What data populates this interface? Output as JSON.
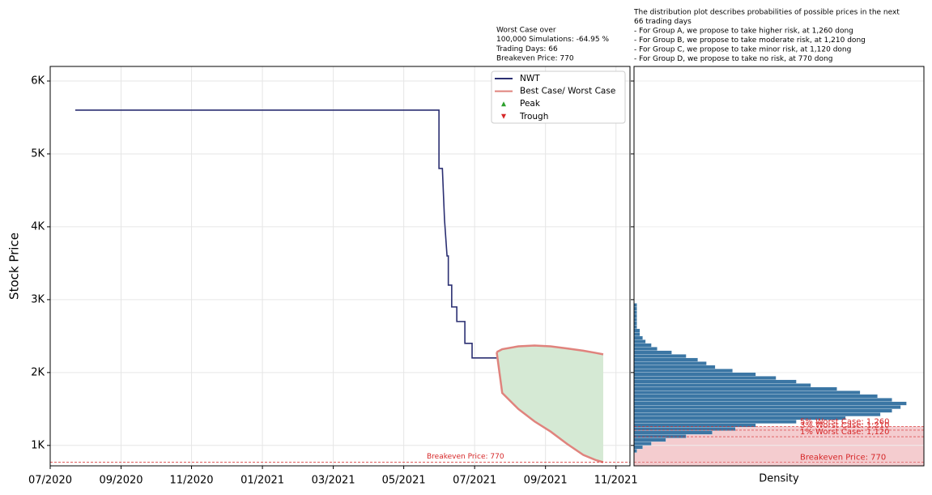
{
  "chart_data": [
    {
      "type": "line",
      "ylabel": "Stock Price",
      "xlim": [
        2020.5,
        2021.866
      ],
      "xticks": [
        {
          "value": 2020.5,
          "label": "07/2020"
        },
        {
          "value": 2020.667,
          "label": "09/2020"
        },
        {
          "value": 2020.833,
          "label": "11/2020"
        },
        {
          "value": 2021.0,
          "label": "01/2021"
        },
        {
          "value": 2021.167,
          "label": "03/2021"
        },
        {
          "value": 2021.333,
          "label": "05/2021"
        },
        {
          "value": 2021.5,
          "label": "07/2021"
        },
        {
          "value": 2021.667,
          "label": "09/2021"
        },
        {
          "value": 2021.833,
          "label": "11/2021"
        }
      ],
      "ylim": [
        720,
        6200
      ],
      "yticks": [
        {
          "value": 1000,
          "label": "1K"
        },
        {
          "value": 2000,
          "label": "2K"
        },
        {
          "value": 3000,
          "label": "3K"
        },
        {
          "value": 4000,
          "label": "4K"
        },
        {
          "value": 5000,
          "label": "5K"
        },
        {
          "value": 6000,
          "label": "6K"
        }
      ],
      "grid": true,
      "legend": "upper right",
      "series": [
        {
          "name": "NWT",
          "color": "#2b2f72",
          "x": [
            2020.559,
            2021.416,
            2021.416,
            2021.424,
            2021.429,
            2021.435,
            2021.438,
            2021.438,
            2021.446,
            2021.446,
            2021.458,
            2021.458,
            2021.477,
            2021.477,
            2021.494,
            2021.494,
            2021.552
          ],
          "values": [
            5600,
            5600,
            4800,
            4800,
            4100,
            3600,
            3600,
            3200,
            3200,
            2900,
            2900,
            2700,
            2700,
            2400,
            2400,
            2200,
            2200
          ]
        },
        {
          "name": "Best Case/ Worst Case",
          "color": "#e0837d",
          "fill": "#d5e9d4",
          "x": [
            2021.552,
            2021.565,
            2021.603,
            2021.641,
            2021.679,
            2021.718,
            2021.756,
            2021.785,
            2021.803
          ],
          "values": [
            2280,
            2320,
            2360,
            2370,
            2360,
            2330,
            2300,
            2270,
            2250
          ],
          "values_low": [
            2280,
            1720,
            1500,
            1330,
            1190,
            1020,
            870,
            800,
            770
          ]
        },
        {
          "name": "Peak",
          "color": "#2ca02c",
          "marker": "^",
          "x": [],
          "values": []
        },
        {
          "name": "Trough",
          "color": "#d62728",
          "marker": "v",
          "x": [],
          "values": []
        }
      ],
      "hlines": [
        {
          "value": 770,
          "label": "Breakeven Price: 770",
          "color": "#d62728"
        }
      ],
      "annotation": [
        "Worst Case over",
        "100,000 Simulations: -64.95 %",
        "Trading Days: 66",
        "Breakeven Price: 770"
      ]
    },
    {
      "type": "histogram",
      "orientation": "horizontal",
      "xlabel": "Density",
      "xlim": [
        0,
        1
      ],
      "ylim": [
        720,
        6200
      ],
      "yticks": [
        1000,
        2000,
        3000,
        4000,
        5000,
        6000
      ],
      "grid": true,
      "color": "#3b76a4",
      "bins": [
        900,
        950,
        1000,
        1050,
        1100,
        1150,
        1200,
        1250,
        1300,
        1350,
        1400,
        1450,
        1500,
        1550,
        1600,
        1650,
        1700,
        1750,
        1800,
        1850,
        1900,
        1950,
        2000,
        2050,
        2100,
        2150,
        2200,
        2250,
        2300,
        2350,
        2400,
        2450,
        2500,
        2550,
        2600,
        2650,
        2700,
        2750,
        2800,
        2850,
        2900,
        2950
      ],
      "values": [
        0.01,
        0.03,
        0.06,
        0.11,
        0.18,
        0.27,
        0.35,
        0.42,
        0.56,
        0.73,
        0.85,
        0.89,
        0.92,
        0.94,
        0.89,
        0.84,
        0.78,
        0.7,
        0.61,
        0.56,
        0.49,
        0.42,
        0.34,
        0.28,
        0.25,
        0.22,
        0.18,
        0.13,
        0.08,
        0.06,
        0.04,
        0.03,
        0.02,
        0.02,
        0.01,
        0.01,
        0.01,
        0.01,
        0.01,
        0.01,
        0.01
      ],
      "shade_color": "#f4cccf",
      "hlines": [
        {
          "value": 1260,
          "label": "5% Worst Case: 1,260",
          "color": "#d62728"
        },
        {
          "value": 1210,
          "label": "3% Worst Case: 1,210",
          "color": "#d62728"
        },
        {
          "value": 1120,
          "label": "1% Worst Case: 1,120",
          "color": "#d62728"
        },
        {
          "value": 770,
          "label": "Breakeven Price: 770",
          "color": "#d62728"
        }
      ],
      "annotation": [
        "The distribution plot describes probabilities of possible prices in the next",
        "66 trading days",
        "- For Group A, we propose to take higher risk, at 1,260 dong",
        "- For Group B, we propose to take moderate risk, at 1,210 dong",
        "- For Group C, we propose to take minor risk, at 1,120 dong",
        "- For Group D, we propose to take no risk, at 770 dong"
      ]
    }
  ]
}
